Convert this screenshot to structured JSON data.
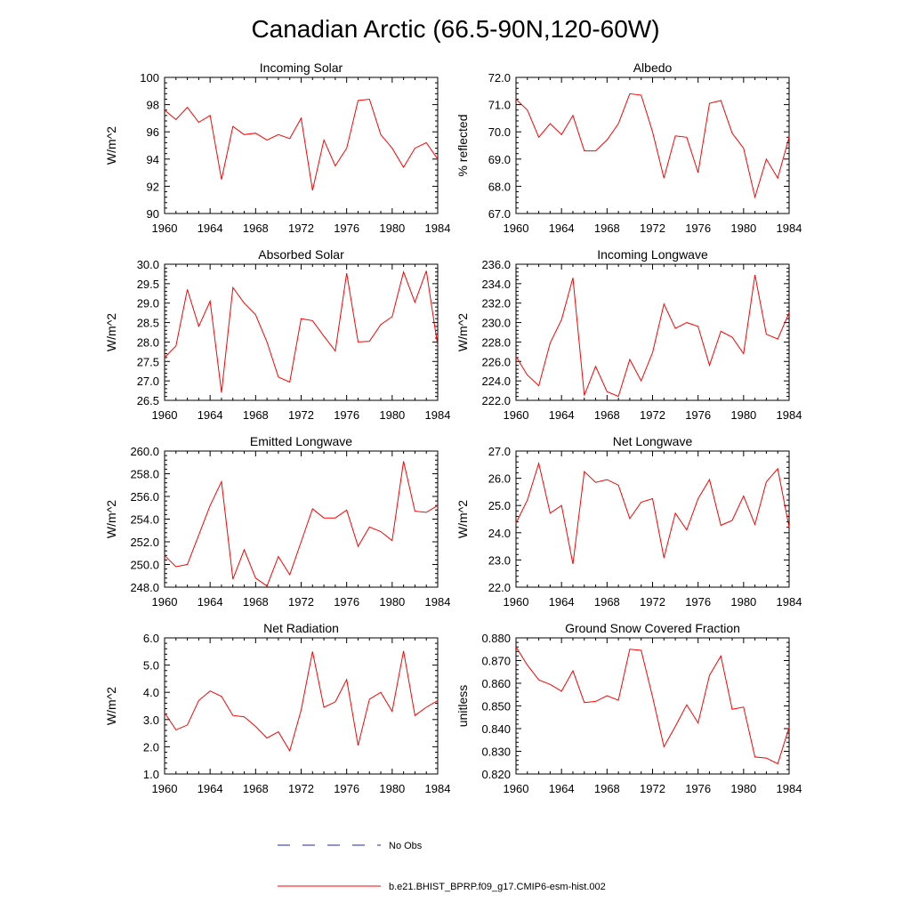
{
  "title": "Canadian Arctic (66.5-90N,120-60W)",
  "colors": {
    "model": "#ff0000",
    "obs": "#2020c0",
    "axis": "#000000"
  },
  "legend": {
    "obs_label": "No Obs",
    "model_label": "b.e21.BHIST_BPRP.f09_g17.CMIP6-esm-hist.002"
  },
  "chart_data": [
    {
      "type": "line",
      "title": "Incoming Solar",
      "ylabel": "W/m^2",
      "xlim": [
        1960,
        1984
      ],
      "ylim": [
        90,
        100
      ],
      "xticks": [
        1960,
        1964,
        1968,
        1972,
        1976,
        1980,
        1984
      ],
      "yticks": [
        90,
        92,
        94,
        96,
        98,
        100
      ],
      "ydecimals": 0,
      "x": [
        1960,
        1961,
        1962,
        1963,
        1964,
        1965,
        1966,
        1967,
        1968,
        1969,
        1970,
        1971,
        1972,
        1973,
        1974,
        1975,
        1976,
        1977,
        1978,
        1979,
        1980,
        1981,
        1982,
        1983,
        1984
      ],
      "series": [
        {
          "values": [
            97.6,
            96.9,
            97.8,
            96.7,
            97.2,
            92.5,
            96.4,
            95.8,
            95.9,
            95.4,
            95.8,
            95.5,
            97.0,
            91.7,
            95.4,
            93.5,
            94.8,
            98.3,
            98.4,
            95.8,
            94.8,
            93.4,
            94.8,
            95.2,
            94.0
          ]
        }
      ]
    },
    {
      "type": "line",
      "title": "Albedo",
      "ylabel": "% reflected",
      "xlim": [
        1960,
        1984
      ],
      "ylim": [
        67,
        72
      ],
      "xticks": [
        1960,
        1964,
        1968,
        1972,
        1976,
        1980,
        1984
      ],
      "yticks": [
        67,
        68,
        69,
        70,
        71,
        72
      ],
      "ydecimals": 1,
      "x": [
        1960,
        1961,
        1962,
        1963,
        1964,
        1965,
        1966,
        1967,
        1968,
        1969,
        1970,
        1971,
        1972,
        1973,
        1974,
        1975,
        1976,
        1977,
        1978,
        1979,
        1980,
        1981,
        1982,
        1983,
        1984
      ],
      "series": [
        {
          "values": [
            71.2,
            70.8,
            69.8,
            70.3,
            69.9,
            70.6,
            69.3,
            69.3,
            69.7,
            70.3,
            71.4,
            71.35,
            70.0,
            68.3,
            69.85,
            69.8,
            68.5,
            71.05,
            71.15,
            69.95,
            69.4,
            67.6,
            69.0,
            68.3,
            69.8
          ]
        }
      ]
    },
    {
      "type": "line",
      "title": "Absorbed Solar",
      "ylabel": "W/m^2",
      "xlim": [
        1960,
        1984
      ],
      "ylim": [
        26.5,
        30.0
      ],
      "xticks": [
        1960,
        1964,
        1968,
        1972,
        1976,
        1980,
        1984
      ],
      "yticks": [
        26.5,
        27.0,
        27.5,
        28.0,
        28.5,
        29.0,
        29.5,
        30.0
      ],
      "ydecimals": 1,
      "x": [
        1960,
        1961,
        1962,
        1963,
        1964,
        1965,
        1966,
        1967,
        1968,
        1969,
        1970,
        1971,
        1972,
        1973,
        1974,
        1975,
        1976,
        1977,
        1978,
        1979,
        1980,
        1981,
        1982,
        1983,
        1984
      ],
      "series": [
        {
          "values": [
            27.6,
            27.9,
            29.35,
            28.4,
            29.05,
            26.7,
            29.4,
            29.0,
            28.7,
            28.0,
            27.1,
            26.97,
            28.6,
            28.55,
            28.15,
            27.77,
            29.77,
            28.0,
            28.02,
            28.45,
            28.65,
            29.8,
            29.02,
            29.83,
            27.9
          ]
        }
      ]
    },
    {
      "type": "line",
      "title": "Incoming Longwave",
      "ylabel": "W/m^2",
      "xlim": [
        1960,
        1984
      ],
      "ylim": [
        222,
        236
      ],
      "xticks": [
        1960,
        1964,
        1968,
        1972,
        1976,
        1980,
        1984
      ],
      "yticks": [
        222,
        224,
        226,
        228,
        230,
        232,
        234,
        236
      ],
      "ydecimals": 1,
      "x": [
        1960,
        1961,
        1962,
        1963,
        1964,
        1965,
        1966,
        1967,
        1968,
        1969,
        1970,
        1971,
        1972,
        1973,
        1974,
        1975,
        1976,
        1977,
        1978,
        1979,
        1980,
        1981,
        1982,
        1983,
        1984
      ],
      "series": [
        {
          "values": [
            226.5,
            224.6,
            223.5,
            227.9,
            230.3,
            234.6,
            222.5,
            225.5,
            222.9,
            222.4,
            226.2,
            224.0,
            226.9,
            231.9,
            229.4,
            230.0,
            229.6,
            225.6,
            229.1,
            228.5,
            226.8,
            234.9,
            228.8,
            228.3,
            231.0
          ]
        }
      ]
    },
    {
      "type": "line",
      "title": "Emitted Longwave",
      "ylabel": "W/m^2",
      "xlim": [
        1960,
        1984
      ],
      "ylim": [
        248,
        260
      ],
      "xticks": [
        1960,
        1964,
        1968,
        1972,
        1976,
        1980,
        1984
      ],
      "yticks": [
        248,
        250,
        252,
        254,
        256,
        258,
        260
      ],
      "ydecimals": 1,
      "x": [
        1960,
        1961,
        1962,
        1963,
        1964,
        1965,
        1966,
        1967,
        1968,
        1969,
        1970,
        1971,
        1972,
        1973,
        1974,
        1975,
        1976,
        1977,
        1978,
        1979,
        1980,
        1981,
        1982,
        1983,
        1984
      ],
      "series": [
        {
          "values": [
            250.8,
            249.8,
            250.0,
            252.6,
            255.2,
            257.3,
            248.7,
            251.3,
            248.8,
            248.1,
            250.7,
            249.1,
            252.0,
            254.9,
            254.1,
            254.1,
            254.8,
            251.6,
            253.3,
            252.9,
            252.1,
            259.1,
            254.7,
            254.6,
            255.2
          ]
        }
      ]
    },
    {
      "type": "line",
      "title": "Net Longwave",
      "ylabel": "W/m^2",
      "xlim": [
        1960,
        1984
      ],
      "ylim": [
        22,
        27
      ],
      "xticks": [
        1960,
        1964,
        1968,
        1972,
        1976,
        1980,
        1984
      ],
      "yticks": [
        22,
        23,
        24,
        25,
        26,
        27
      ],
      "ydecimals": 1,
      "x": [
        1960,
        1961,
        1962,
        1963,
        1964,
        1965,
        1966,
        1967,
        1968,
        1969,
        1970,
        1971,
        1972,
        1973,
        1974,
        1975,
        1976,
        1977,
        1978,
        1979,
        1980,
        1981,
        1982,
        1983,
        1984
      ],
      "series": [
        {
          "values": [
            24.35,
            25.2,
            26.55,
            24.72,
            25.0,
            22.85,
            26.25,
            25.85,
            25.95,
            25.75,
            24.52,
            25.12,
            25.25,
            23.08,
            24.72,
            24.1,
            25.25,
            25.95,
            24.27,
            24.45,
            25.35,
            24.3,
            25.87,
            26.35,
            24.2
          ]
        }
      ]
    },
    {
      "type": "line",
      "title": "Net Radiation",
      "ylabel": "W/m^2",
      "xlim": [
        1960,
        1984
      ],
      "ylim": [
        1,
        6
      ],
      "xticks": [
        1960,
        1964,
        1968,
        1972,
        1976,
        1980,
        1984
      ],
      "yticks": [
        1,
        2,
        3,
        4,
        5,
        6
      ],
      "ydecimals": 1,
      "x": [
        1960,
        1961,
        1962,
        1963,
        1964,
        1965,
        1966,
        1967,
        1968,
        1969,
        1970,
        1971,
        1972,
        1973,
        1974,
        1975,
        1976,
        1977,
        1978,
        1979,
        1980,
        1981,
        1982,
        1983,
        1984
      ],
      "series": [
        {
          "values": [
            3.25,
            2.62,
            2.8,
            3.7,
            4.05,
            3.85,
            3.15,
            3.1,
            2.75,
            2.32,
            2.55,
            1.85,
            3.35,
            5.5,
            3.45,
            3.65,
            4.47,
            2.05,
            3.75,
            4.0,
            3.3,
            5.52,
            3.15,
            3.45,
            3.7
          ]
        }
      ]
    },
    {
      "type": "line",
      "title": "Ground Snow Covered Fraction",
      "ylabel": "unitless",
      "xlim": [
        1960,
        1984
      ],
      "ylim": [
        0.82,
        0.88
      ],
      "xticks": [
        1960,
        1964,
        1968,
        1972,
        1976,
        1980,
        1984
      ],
      "yticks": [
        0.82,
        0.83,
        0.84,
        0.85,
        0.86,
        0.87,
        0.88
      ],
      "ydecimals": 3,
      "x": [
        1960,
        1961,
        1962,
        1963,
        1964,
        1965,
        1966,
        1967,
        1968,
        1969,
        1970,
        1971,
        1972,
        1973,
        1974,
        1975,
        1976,
        1977,
        1978,
        1979,
        1980,
        1981,
        1982,
        1983,
        1984
      ],
      "series": [
        {
          "values": [
            0.876,
            0.868,
            0.8615,
            0.8595,
            0.8565,
            0.8655,
            0.8515,
            0.852,
            0.8545,
            0.8525,
            0.875,
            0.8745,
            0.854,
            0.832,
            0.841,
            0.8505,
            0.8425,
            0.8635,
            0.872,
            0.8485,
            0.8495,
            0.8275,
            0.827,
            0.8245,
            0.8405
          ]
        }
      ]
    }
  ]
}
